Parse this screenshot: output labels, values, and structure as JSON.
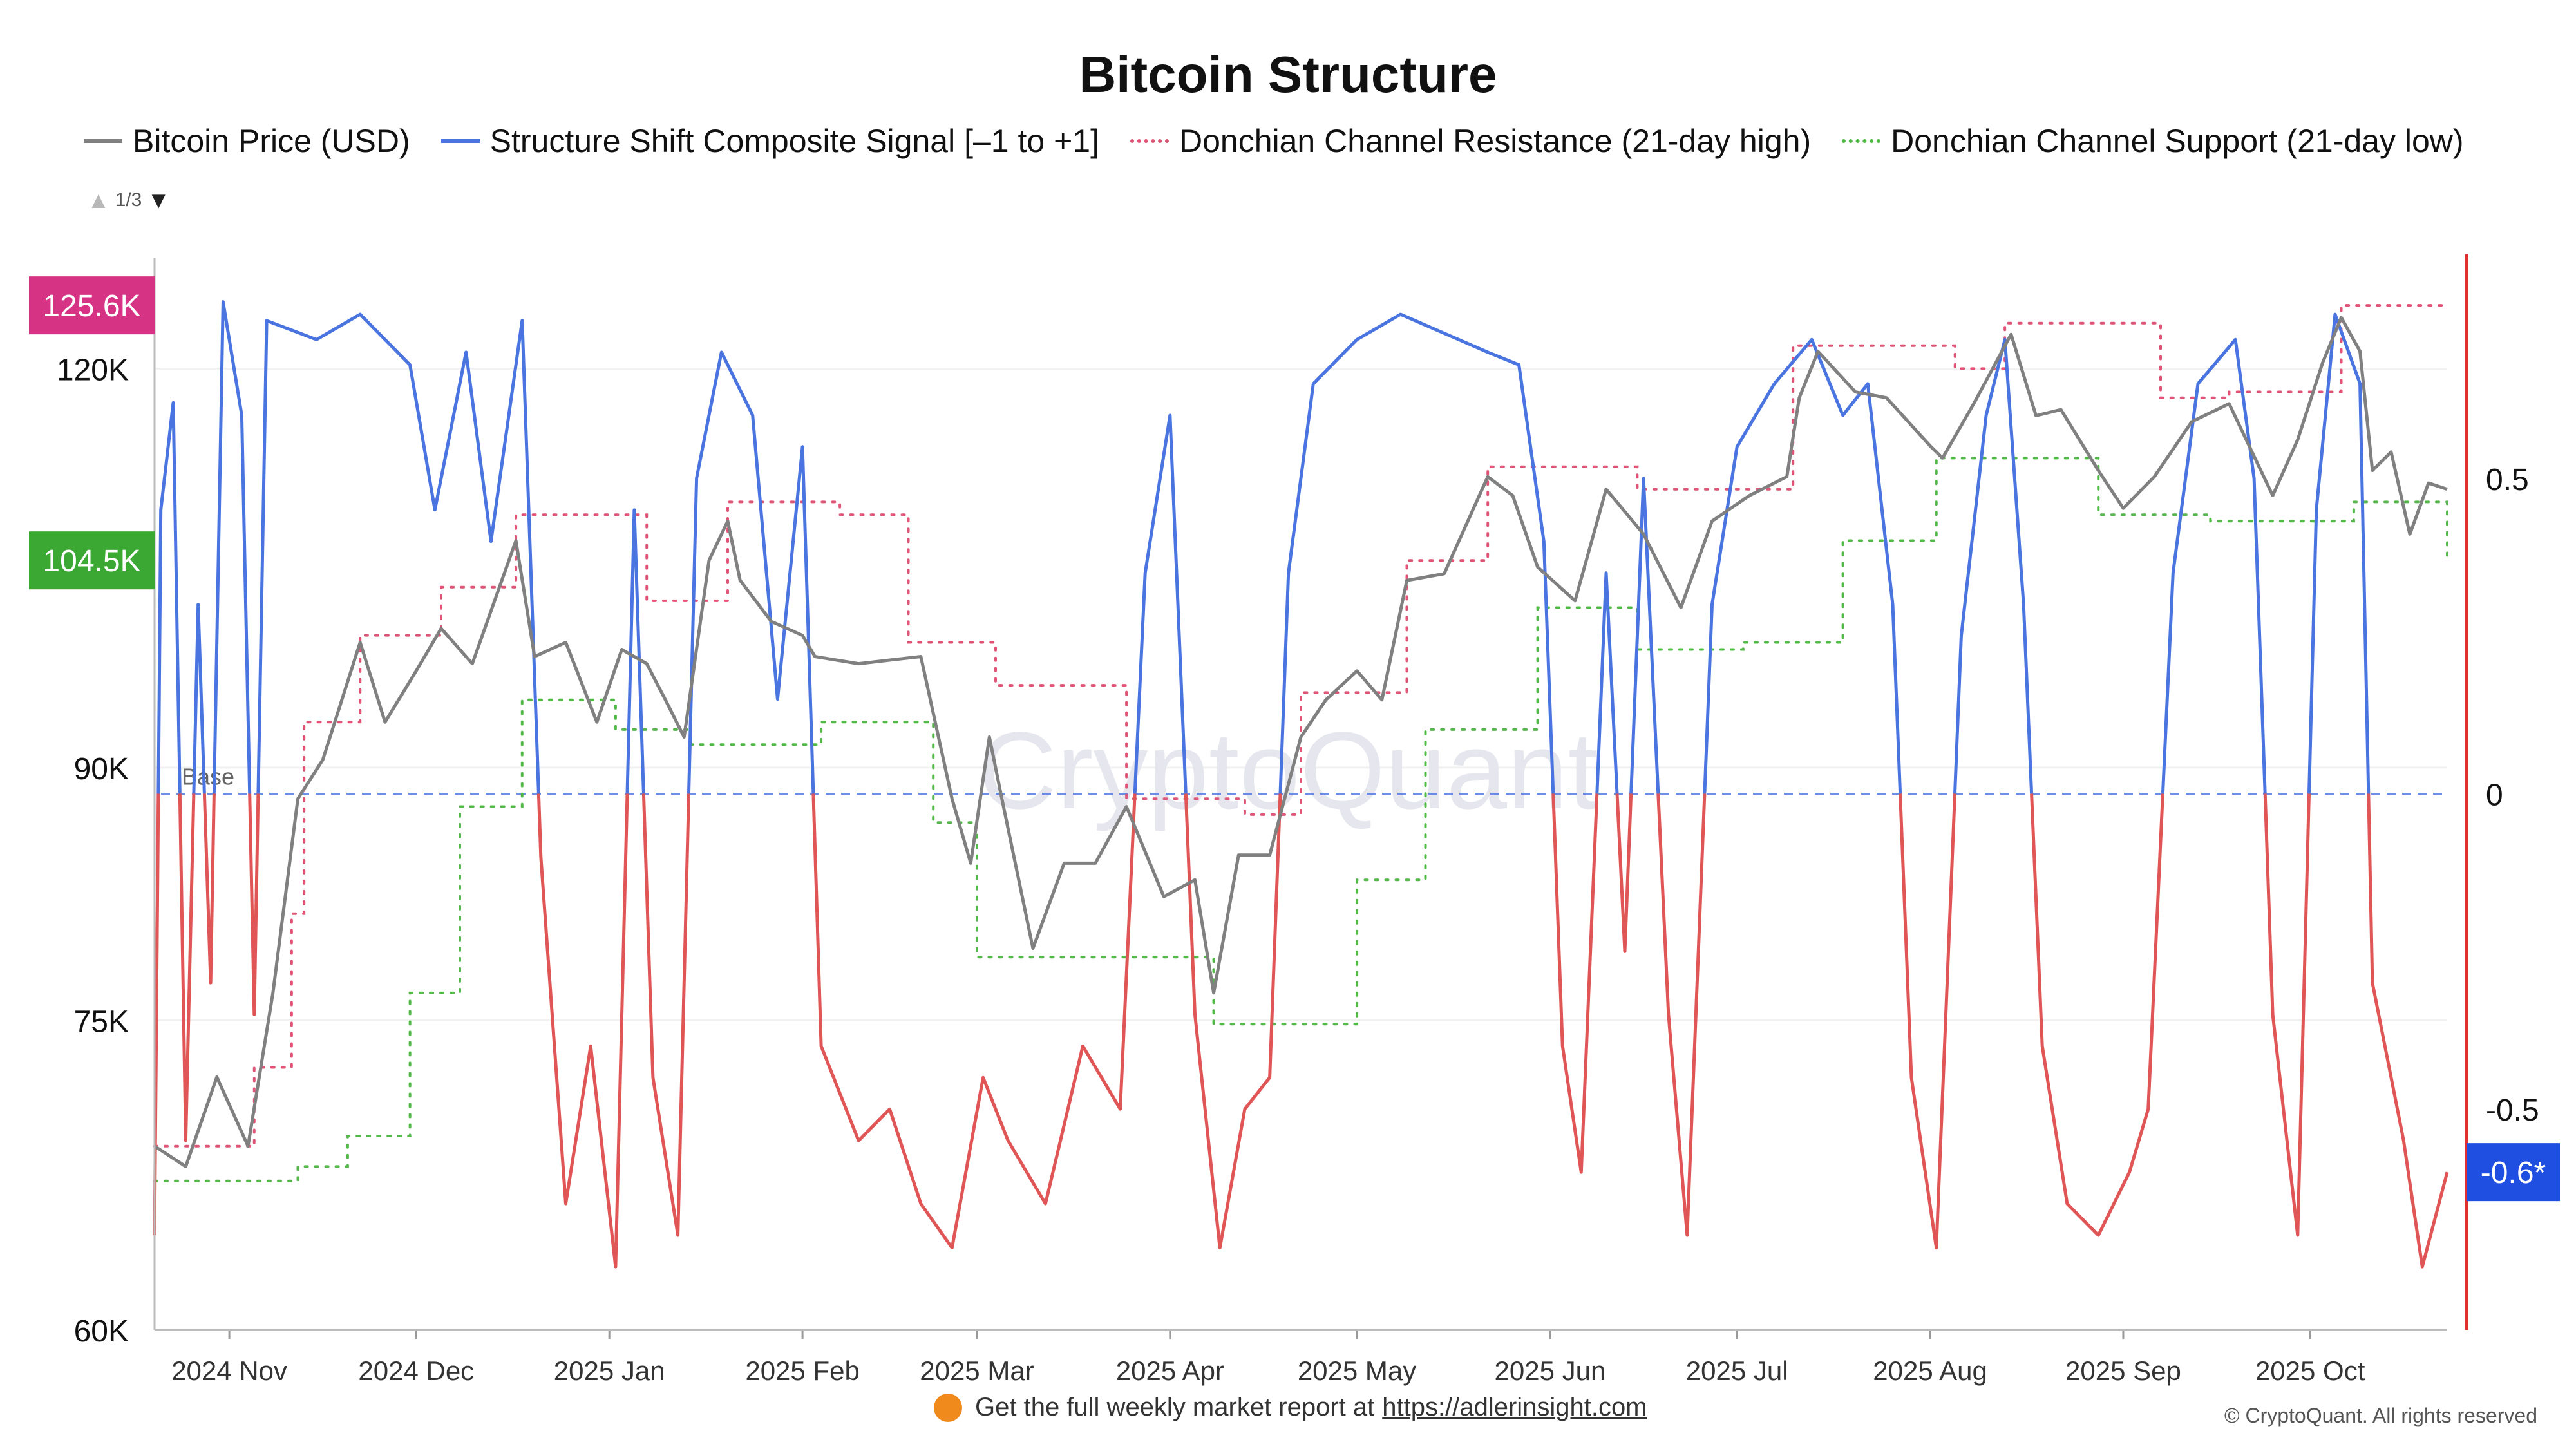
{
  "colors": {
    "price": "#808080",
    "signal_positive": "#4a74e0",
    "signal_negative": "#e05555",
    "resistance": "#e05577",
    "support": "#55b84a",
    "base": "#4a74e0",
    "right_axis": "#e03030"
  },
  "chart_data": {
    "type": "line",
    "title": "Bitcoin Structure",
    "x_ticks": [
      "2024 Nov",
      "2024 Dec",
      "2025 Jan",
      "2025 Feb",
      "2025 Mar",
      "2025 Apr",
      "2025 May",
      "2025 Jun",
      "2025 Jul",
      "2025 Aug",
      "2025 Sep",
      "2025 Oct"
    ],
    "x_range": [
      "2024-10-20",
      "2025-10-23"
    ],
    "left_axis": {
      "ticks": [
        "60K",
        "75K",
        "90K",
        "120K"
      ],
      "range": [
        60000,
        130000
      ],
      "scale": "log"
    },
    "right_axis": {
      "ticks": [
        "0.5",
        "0",
        "-0.5"
      ],
      "range": [
        -0.85,
        0.85
      ]
    },
    "markers": {
      "resistance_label": "125.6K",
      "support_label": "104.5K",
      "signal_label": "-0.6*",
      "base_label": "Base",
      "pager": "1/3"
    },
    "series": [
      {
        "name": "Bitcoin Price (USD)",
        "axis": "left",
        "points": [
          [
            "2024-10-20",
            68500
          ],
          [
            "2024-10-25",
            67500
          ],
          [
            "2024-10-30",
            72000
          ],
          [
            "2024-11-04",
            68500
          ],
          [
            "2024-11-08",
            76500
          ],
          [
            "2024-11-12",
            88000
          ],
          [
            "2024-11-16",
            90500
          ],
          [
            "2024-11-22",
            98500
          ],
          [
            "2024-11-26",
            93000
          ],
          [
            "2024-12-01",
            96500
          ],
          [
            "2024-12-05",
            99500
          ],
          [
            "2024-12-10",
            97000
          ],
          [
            "2024-12-17",
            106000
          ],
          [
            "2024-12-20",
            97500
          ],
          [
            "2024-12-25",
            98500
          ],
          [
            "2024-12-30",
            93000
          ],
          [
            "2025-01-03",
            98000
          ],
          [
            "2025-01-07",
            97000
          ],
          [
            "2025-01-10",
            94500
          ],
          [
            "2025-01-13",
            92000
          ],
          [
            "2025-01-17",
            104500
          ],
          [
            "2025-01-20",
            107500
          ],
          [
            "2025-01-22",
            103000
          ],
          [
            "2025-01-27",
            100000
          ],
          [
            "2025-02-01",
            99000
          ],
          [
            "2025-02-03",
            97500
          ],
          [
            "2025-02-10",
            97000
          ],
          [
            "2025-02-20",
            97500
          ],
          [
            "2025-02-25",
            88000
          ],
          [
            "2025-02-28",
            84000
          ],
          [
            "2025-03-03",
            92000
          ],
          [
            "2025-03-05",
            88000
          ],
          [
            "2025-03-10",
            79000
          ],
          [
            "2025-03-15",
            84000
          ],
          [
            "2025-03-20",
            84000
          ],
          [
            "2025-03-25",
            87500
          ],
          [
            "2025-03-31",
            82000
          ],
          [
            "2025-04-05",
            83000
          ],
          [
            "2025-04-08",
            76500
          ],
          [
            "2025-04-12",
            84500
          ],
          [
            "2025-04-17",
            84500
          ],
          [
            "2025-04-22",
            92000
          ],
          [
            "2025-04-26",
            94500
          ],
          [
            "2025-05-01",
            96500
          ],
          [
            "2025-05-05",
            94500
          ],
          [
            "2025-05-09",
            103000
          ],
          [
            "2025-05-15",
            103500
          ],
          [
            "2025-05-22",
            111000
          ],
          [
            "2025-05-26",
            109500
          ],
          [
            "2025-05-30",
            104000
          ],
          [
            "2025-06-05",
            101500
          ],
          [
            "2025-06-10",
            110000
          ],
          [
            "2025-06-16",
            106500
          ],
          [
            "2025-06-22",
            101000
          ],
          [
            "2025-06-27",
            107500
          ],
          [
            "2025-07-03",
            109500
          ],
          [
            "2025-07-09",
            111000
          ],
          [
            "2025-07-11",
            117500
          ],
          [
            "2025-07-14",
            121500
          ],
          [
            "2025-07-20",
            118000
          ],
          [
            "2025-07-25",
            117500
          ],
          [
            "2025-08-01",
            113500
          ],
          [
            "2025-08-03",
            112500
          ],
          [
            "2025-08-08",
            117000
          ],
          [
            "2025-08-14",
            123000
          ],
          [
            "2025-08-18",
            116000
          ],
          [
            "2025-08-22",
            116500
          ],
          [
            "2025-08-28",
            111500
          ],
          [
            "2025-09-01",
            108500
          ],
          [
            "2025-09-06",
            111000
          ],
          [
            "2025-09-12",
            115500
          ],
          [
            "2025-09-18",
            117000
          ],
          [
            "2025-09-25",
            109500
          ],
          [
            "2025-09-29",
            114000
          ],
          [
            "2025-10-03",
            120500
          ],
          [
            "2025-10-06",
            124500
          ],
          [
            "2025-10-09",
            121500
          ],
          [
            "2025-10-11",
            111500
          ],
          [
            "2025-10-14",
            113000
          ],
          [
            "2025-10-17",
            106500
          ],
          [
            "2025-10-20",
            110500
          ],
          [
            "2025-10-23",
            110000
          ]
        ]
      },
      {
        "name": "Structure Shift Composite Signal [–1 to +1]",
        "axis": "right",
        "points": [
          [
            "2024-10-20",
            -0.7
          ],
          [
            "2024-10-21",
            0.45
          ],
          [
            "2024-10-23",
            0.62
          ],
          [
            "2024-10-25",
            -0.55
          ],
          [
            "2024-10-27",
            0.3
          ],
          [
            "2024-10-29",
            -0.3
          ],
          [
            "2024-10-31",
            0.78
          ],
          [
            "2024-11-03",
            0.6
          ],
          [
            "2024-11-05",
            -0.35
          ],
          [
            "2024-11-07",
            0.75
          ],
          [
            "2024-11-15",
            0.72
          ],
          [
            "2024-11-22",
            0.76
          ],
          [
            "2024-11-30",
            0.68
          ],
          [
            "2024-12-04",
            0.45
          ],
          [
            "2024-12-09",
            0.7
          ],
          [
            "2024-12-13",
            0.4
          ],
          [
            "2024-12-18",
            0.75
          ],
          [
            "2024-12-21",
            -0.1
          ],
          [
            "2024-12-25",
            -0.65
          ],
          [
            "2024-12-29",
            -0.4
          ],
          [
            "2025-01-02",
            -0.75
          ],
          [
            "2025-01-05",
            0.45
          ],
          [
            "2025-01-08",
            -0.45
          ],
          [
            "2025-01-12",
            -0.7
          ],
          [
            "2025-01-15",
            0.5
          ],
          [
            "2025-01-19",
            0.7
          ],
          [
            "2025-01-24",
            0.6
          ],
          [
            "2025-01-28",
            0.15
          ],
          [
            "2025-02-01",
            0.55
          ],
          [
            "2025-02-04",
            -0.4
          ],
          [
            "2025-02-10",
            -0.55
          ],
          [
            "2025-02-15",
            -0.5
          ],
          [
            "2025-02-20",
            -0.65
          ],
          [
            "2025-02-25",
            -0.72
          ],
          [
            "2025-03-02",
            -0.45
          ],
          [
            "2025-03-06",
            -0.55
          ],
          [
            "2025-03-12",
            -0.65
          ],
          [
            "2025-03-18",
            -0.4
          ],
          [
            "2025-03-24",
            -0.5
          ],
          [
            "2025-03-28",
            0.35
          ],
          [
            "2025-04-01",
            0.6
          ],
          [
            "2025-04-05",
            -0.35
          ],
          [
            "2025-04-09",
            -0.72
          ],
          [
            "2025-04-13",
            -0.5
          ],
          [
            "2025-04-17",
            -0.45
          ],
          [
            "2025-04-20",
            0.35
          ],
          [
            "2025-04-24",
            0.65
          ],
          [
            "2025-05-01",
            0.72
          ],
          [
            "2025-05-08",
            0.76
          ],
          [
            "2025-05-15",
            0.73
          ],
          [
            "2025-05-22",
            0.7
          ],
          [
            "2025-05-27",
            0.68
          ],
          [
            "2025-05-31",
            0.4
          ],
          [
            "2025-06-03",
            -0.4
          ],
          [
            "2025-06-06",
            -0.6
          ],
          [
            "2025-06-10",
            0.35
          ],
          [
            "2025-06-13",
            -0.25
          ],
          [
            "2025-06-16",
            0.5
          ],
          [
            "2025-06-20",
            -0.35
          ],
          [
            "2025-06-23",
            -0.7
          ],
          [
            "2025-06-27",
            0.3
          ],
          [
            "2025-07-01",
            0.55
          ],
          [
            "2025-07-07",
            0.65
          ],
          [
            "2025-07-13",
            0.72
          ],
          [
            "2025-07-18",
            0.6
          ],
          [
            "2025-07-22",
            0.65
          ],
          [
            "2025-07-26",
            0.3
          ],
          [
            "2025-07-29",
            -0.45
          ],
          [
            "2025-08-02",
            -0.72
          ],
          [
            "2025-08-06",
            0.25
          ],
          [
            "2025-08-10",
            0.6
          ],
          [
            "2025-08-13",
            0.72
          ],
          [
            "2025-08-16",
            0.3
          ],
          [
            "2025-08-19",
            -0.4
          ],
          [
            "2025-08-23",
            -0.65
          ],
          [
            "2025-08-28",
            -0.7
          ],
          [
            "2025-09-02",
            -0.6
          ],
          [
            "2025-09-05",
            -0.5
          ],
          [
            "2025-09-09",
            0.35
          ],
          [
            "2025-09-13",
            0.65
          ],
          [
            "2025-09-19",
            0.72
          ],
          [
            "2025-09-22",
            0.5
          ],
          [
            "2025-09-25",
            -0.35
          ],
          [
            "2025-09-29",
            -0.7
          ],
          [
            "2025-10-02",
            0.45
          ],
          [
            "2025-10-05",
            0.76
          ],
          [
            "2025-10-09",
            0.65
          ],
          [
            "2025-10-11",
            -0.3
          ],
          [
            "2025-10-13",
            -0.4
          ],
          [
            "2025-10-16",
            -0.55
          ],
          [
            "2025-10-19",
            -0.75
          ],
          [
            "2025-10-23",
            -0.6
          ]
        ]
      },
      {
        "name": "Donchian Channel Resistance (21-day high)",
        "axis": "left",
        "points": [
          [
            "2024-10-20",
            68500
          ],
          [
            "2024-11-05",
            72500
          ],
          [
            "2024-11-11",
            81000
          ],
          [
            "2024-11-13",
            93000
          ],
          [
            "2024-11-22",
            99000
          ],
          [
            "2024-12-05",
            102500
          ],
          [
            "2024-12-17",
            108000
          ],
          [
            "2025-01-07",
            101500
          ],
          [
            "2025-01-20",
            109000
          ],
          [
            "2025-02-07",
            108000
          ],
          [
            "2025-02-18",
            98500
          ],
          [
            "2025-03-04",
            95500
          ],
          [
            "2025-03-25",
            88000
          ],
          [
            "2025-04-13",
            87000
          ],
          [
            "2025-04-22",
            95000
          ],
          [
            "2025-05-09",
            104500
          ],
          [
            "2025-05-22",
            111800
          ],
          [
            "2025-06-15",
            110000
          ],
          [
            "2025-07-10",
            122000
          ],
          [
            "2025-08-05",
            120000
          ],
          [
            "2025-08-13",
            124000
          ],
          [
            "2025-09-07",
            117500
          ],
          [
            "2025-09-18",
            118000
          ],
          [
            "2025-10-06",
            125600
          ],
          [
            "2025-10-23",
            125600
          ]
        ]
      },
      {
        "name": "Donchian Channel Support (21-day low)",
        "axis": "left",
        "points": [
          [
            "2024-10-20",
            66800
          ],
          [
            "2024-11-12",
            67500
          ],
          [
            "2024-11-20",
            69000
          ],
          [
            "2024-11-30",
            76500
          ],
          [
            "2024-12-08",
            87500
          ],
          [
            "2024-12-18",
            94500
          ],
          [
            "2025-01-02",
            92500
          ],
          [
            "2025-01-14",
            91500
          ],
          [
            "2025-02-04",
            93000
          ],
          [
            "2025-02-22",
            86500
          ],
          [
            "2025-03-01",
            78500
          ],
          [
            "2025-04-08",
            74800
          ],
          [
            "2025-05-01",
            83000
          ],
          [
            "2025-05-12",
            92500
          ],
          [
            "2025-05-30",
            101000
          ],
          [
            "2025-06-15",
            98000
          ],
          [
            "2025-07-02",
            98500
          ],
          [
            "2025-07-18",
            106000
          ],
          [
            "2025-08-02",
            112500
          ],
          [
            "2025-08-28",
            108000
          ],
          [
            "2025-09-15",
            107500
          ],
          [
            "2025-10-08",
            109000
          ],
          [
            "2025-10-23",
            104500
          ]
        ]
      }
    ]
  },
  "footer": {
    "text": "Get the full weekly market report at",
    "link": "https://adlerinsight.com",
    "copyright": "© CryptoQuant. All rights reserved"
  },
  "watermark": "CryptoQuant"
}
